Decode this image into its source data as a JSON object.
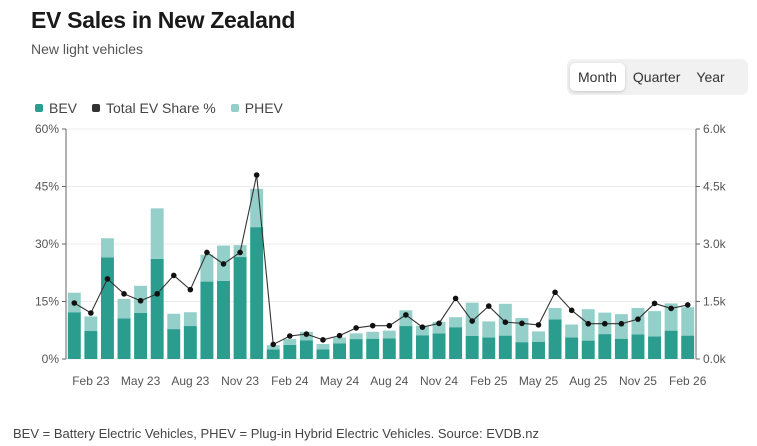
{
  "header": {
    "title": "EV Sales in New Zealand",
    "subtitle": "New light vehicles"
  },
  "toggle": {
    "options": [
      "Month",
      "Quarter",
      "Year"
    ],
    "selected": "Month"
  },
  "legend": [
    {
      "label": "BEV",
      "color": "#2a9d8f"
    },
    {
      "label": "Total EV Share %",
      "color": "#333333"
    },
    {
      "label": "PHEV",
      "color": "#94d0c9"
    }
  ],
  "footnote": "BEV = Battery Electric Vehicles, PHEV = Plug-in Hybrid Electric Vehicles. Source: EVDB.nz",
  "chart_data": {
    "type": "bar",
    "stacked": true,
    "categories": [
      "Jan 23",
      "Feb 23",
      "Mar 23",
      "Apr 23",
      "May 23",
      "Jun 23",
      "Jul 23",
      "Aug 23",
      "Sep 23",
      "Oct 23",
      "Nov 23",
      "Dec 23",
      "Jan 24",
      "Feb 24",
      "Mar 24",
      "Apr 24",
      "May 24",
      "Jun 24",
      "Jul 24",
      "Aug 24",
      "Sep 24",
      "Oct 24",
      "Nov 24",
      "Dec 24",
      "Jan 25",
      "Feb 25",
      "Mar 25",
      "Apr 25",
      "May 25",
      "Jun 25",
      "Jul 25",
      "Aug 25",
      "Sep 25",
      "Oct 25",
      "Nov 25",
      "Dec 25",
      "Jan 26",
      "Feb 26"
    ],
    "x_tick_labels": [
      "Feb 23",
      "May 23",
      "Aug 23",
      "Nov 23",
      "Feb 24",
      "May 24",
      "Aug 24",
      "Nov 24",
      "Feb 25",
      "May 25",
      "Aug 25",
      "Nov 25",
      "Feb 26"
    ],
    "series": [
      {
        "name": "BEV",
        "axis": "right",
        "color": "#2a9d8f",
        "values": [
          1220,
          730,
          2650,
          1060,
          1200,
          2610,
          780,
          860,
          2020,
          2040,
          2660,
          3440,
          250,
          370,
          490,
          250,
          410,
          520,
          530,
          540,
          860,
          620,
          670,
          830,
          600,
          560,
          610,
          440,
          450,
          1030,
          560,
          480,
          650,
          530,
          640,
          590,
          740,
          610
        ]
      },
      {
        "name": "PHEV",
        "axis": "right",
        "color": "#94d0c9",
        "values": [
          510,
          380,
          500,
          510,
          710,
          1320,
          400,
          360,
          700,
          920,
          310,
          1000,
          110,
          150,
          220,
          140,
          150,
          150,
          180,
          200,
          410,
          250,
          300,
          260,
          870,
          420,
          830,
          630,
          270,
          300,
          340,
          820,
          560,
          640,
          690,
          660,
          710,
          740
        ]
      },
      {
        "name": "Total EV Share %",
        "axis": "left",
        "type": "line",
        "color": "#1a1a1a",
        "values": [
          14.6,
          12.0,
          20.9,
          17.0,
          15.2,
          17.0,
          21.8,
          18.1,
          27.8,
          24.8,
          27.8,
          48.0,
          3.8,
          6.0,
          6.5,
          5.0,
          6.1,
          8.1,
          8.7,
          8.7,
          11.5,
          8.3,
          9.3,
          15.8,
          9.9,
          13.8,
          9.6,
          9.3,
          8.9,
          17.4,
          12.7,
          9.2,
          9.2,
          9.2,
          10.4,
          14.5,
          13.2,
          14.1
        ]
      }
    ],
    "y_left": {
      "ticks": [
        "0%",
        "15%",
        "30%",
        "45%",
        "60%"
      ],
      "range": [
        0,
        60
      ]
    },
    "y_right": {
      "ticks": [
        "0.0k",
        "1.5k",
        "3.0k",
        "4.5k",
        "6.0k"
      ],
      "range": [
        0,
        6000
      ]
    },
    "grid": true
  }
}
